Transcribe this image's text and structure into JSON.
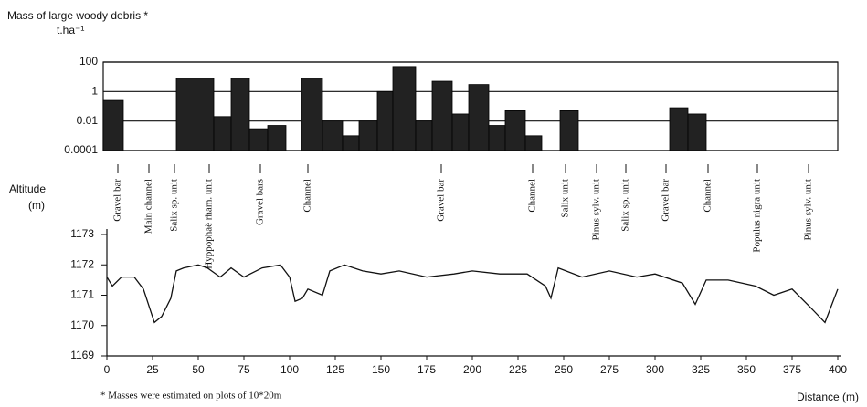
{
  "chart_data": [
    {
      "type": "bar",
      "title": "Mass of large woody debris *",
      "unit": "t.ha⁻¹",
      "log_scale": true,
      "ylim": [
        0.0001,
        100
      ],
      "yticks": [
        0.0001,
        0.01,
        1,
        100
      ],
      "grid": true,
      "color": "#222222",
      "xlim": [
        0,
        400
      ],
      "x_start": [
        -2,
        38,
        58.5,
        68,
        78,
        88,
        106.5,
        118,
        129,
        138,
        148,
        156.5,
        169,
        178,
        189,
        198,
        209,
        218,
        229,
        248,
        308,
        318
      ],
      "x_end": [
        9,
        58.5,
        68,
        78,
        88,
        98,
        118,
        129,
        138,
        148,
        156.5,
        169,
        178,
        189,
        198,
        209,
        218,
        229,
        238,
        258,
        318,
        328
      ],
      "values": [
        0.25,
        8,
        0.02,
        8,
        0.003,
        0.005,
        8,
        0.01,
        0.001,
        0.01,
        1,
        50,
        0.01,
        5,
        0.03,
        3,
        0.005,
        0.05,
        0.001,
        0.05,
        0.08,
        0.03
      ]
    },
    {
      "type": "line",
      "ylabel": "Altitude",
      "yunit": "(m)",
      "xlabel": "Distance (m)",
      "xlim": [
        0,
        400
      ],
      "xticks": [
        0,
        25,
        50,
        75,
        100,
        125,
        150,
        175,
        200,
        225,
        250,
        275,
        300,
        325,
        350,
        375,
        400
      ],
      "ylim": [
        1169,
        1173
      ],
      "yticks": [
        1169,
        1170,
        1171,
        1172,
        1173
      ],
      "series": [
        {
          "color": "#111111",
          "x": [
            0,
            3,
            8,
            15,
            20,
            26,
            30,
            35,
            38,
            42,
            50,
            55,
            62,
            68,
            75,
            85,
            95,
            100,
            103,
            107,
            110,
            118,
            122,
            130,
            140,
            150,
            160,
            175,
            190,
            200,
            215,
            230,
            240,
            243,
            247,
            260,
            275,
            290,
            300,
            315,
            322,
            328,
            340,
            355,
            365,
            375,
            385,
            393,
            400
          ],
          "values": [
            1171.6,
            1171.3,
            1171.6,
            1171.6,
            1171.2,
            1170.1,
            1170.3,
            1170.9,
            1171.8,
            1171.9,
            1172.0,
            1171.9,
            1171.6,
            1171.9,
            1171.6,
            1171.9,
            1172.0,
            1171.6,
            1170.8,
            1170.9,
            1171.2,
            1171.0,
            1171.8,
            1172.0,
            1171.8,
            1171.7,
            1171.8,
            1171.6,
            1171.7,
            1171.8,
            1171.7,
            1171.7,
            1171.3,
            1170.9,
            1171.9,
            1171.6,
            1171.8,
            1171.6,
            1171.7,
            1171.4,
            1170.7,
            1171.5,
            1171.5,
            1171.3,
            1171.0,
            1171.2,
            1170.6,
            1170.1,
            1171.2
          ]
        }
      ],
      "zones": [
        {
          "label": "Gravel bar",
          "x": 6
        },
        {
          "label": "Main channel",
          "x": 23
        },
        {
          "label": "Salix sp. unit",
          "x": 37
        },
        {
          "label": "Hyppophaë rham. unit",
          "x": 56
        },
        {
          "label": "Gravel bars",
          "x": 84
        },
        {
          "label": "Channel",
          "x": 110
        },
        {
          "label": "Gravel bar",
          "x": 183
        },
        {
          "label": "Channel",
          "x": 233
        },
        {
          "label": "Salix unit",
          "x": 251
        },
        {
          "label": "Pinus sylv. unit",
          "x": 268
        },
        {
          "label": "Salix sp. unit",
          "x": 284
        },
        {
          "label": "Gravel bar",
          "x": 306
        },
        {
          "label": "Channel",
          "x": 329
        },
        {
          "label": "Populus nigra unit",
          "x": 356
        },
        {
          "label": "Pinus sylv. unit",
          "x": 384
        }
      ],
      "footnote": "* Masses were estimated on plots of 10*20m"
    }
  ]
}
